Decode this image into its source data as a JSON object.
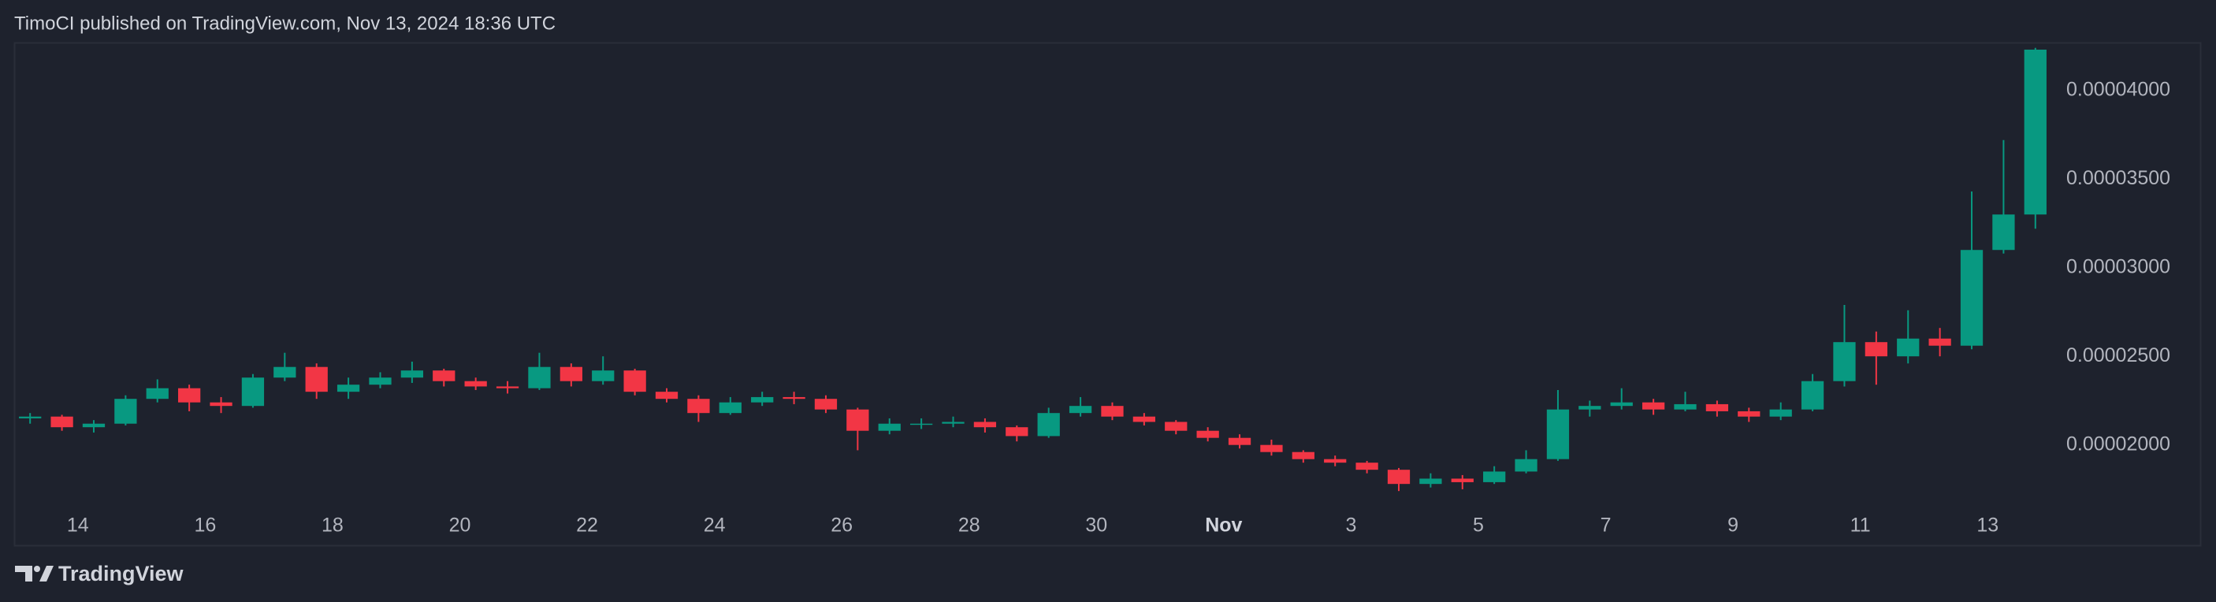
{
  "header": {
    "text": "TimoCI published on TradingView.com, Nov 13, 2024 18:36 UTC"
  },
  "footer": {
    "brand": "TradingView"
  },
  "chart_data": {
    "type": "candlestick",
    "up_color": "#089981",
    "down_color": "#f23645",
    "grid": false,
    "open": [
      2.15e-05,
      2.16e-05,
      2.1e-05,
      2.12e-05,
      2.26e-05,
      2.32e-05,
      2.24e-05,
      2.22e-05,
      2.38e-05,
      2.44e-05,
      2.3e-05,
      2.34e-05,
      2.38e-05,
      2.42e-05,
      2.36e-05,
      2.33e-05,
      2.32e-05,
      2.44e-05,
      2.36e-05,
      2.42e-05,
      2.3e-05,
      2.26e-05,
      2.18e-05,
      2.24e-05,
      2.27e-05,
      2.26e-05,
      2.2e-05,
      2.08e-05,
      2.12e-05,
      2.12e-05,
      2.13e-05,
      2.1e-05,
      2.05e-05,
      2.18e-05,
      2.22e-05,
      2.16e-05,
      2.13e-05,
      2.08e-05,
      2.04e-05,
      2e-05,
      1.96e-05,
      1.92e-05,
      1.9e-05,
      1.86e-05,
      1.78e-05,
      1.81e-05,
      1.79e-05,
      1.85e-05,
      1.92e-05,
      2.2e-05,
      2.22e-05,
      2.24e-05,
      2.2e-05,
      2.23e-05,
      2.19e-05,
      2.16e-05,
      2.2e-05,
      2.36e-05,
      2.58e-05,
      2.5e-05,
      2.6e-05,
      2.56e-05,
      3.1e-05,
      3.3e-05
    ],
    "high": [
      2.18e-05,
      2.17e-05,
      2.14e-05,
      2.28e-05,
      2.37e-05,
      2.34e-05,
      2.27e-05,
      2.4e-05,
      2.52e-05,
      2.46e-05,
      2.38e-05,
      2.41e-05,
      2.47e-05,
      2.43e-05,
      2.38e-05,
      2.36e-05,
      2.52e-05,
      2.46e-05,
      2.5e-05,
      2.43e-05,
      2.32e-05,
      2.28e-05,
      2.27e-05,
      2.3e-05,
      2.3e-05,
      2.28e-05,
      2.21e-05,
      2.15e-05,
      2.15e-05,
      2.16e-05,
      2.15e-05,
      2.11e-05,
      2.21e-05,
      2.27e-05,
      2.24e-05,
      2.18e-05,
      2.14e-05,
      2.1e-05,
      2.06e-05,
      2.03e-05,
      1.97e-05,
      1.94e-05,
      1.91e-05,
      1.87e-05,
      1.84e-05,
      1.83e-05,
      1.88e-05,
      1.97e-05,
      2.31e-05,
      2.25e-05,
      2.32e-05,
      2.26e-05,
      2.3e-05,
      2.25e-05,
      2.21e-05,
      2.24e-05,
      2.4e-05,
      2.79e-05,
      2.64e-05,
      2.76e-05,
      2.66e-05,
      3.43e-05,
      3.72e-05,
      4.24e-05
    ],
    "low": [
      2.12e-05,
      2.08e-05,
      2.07e-05,
      2.11e-05,
      2.24e-05,
      2.19e-05,
      2.18e-05,
      2.21e-05,
      2.36e-05,
      2.26e-05,
      2.26e-05,
      2.32e-05,
      2.35e-05,
      2.33e-05,
      2.31e-05,
      2.29e-05,
      2.31e-05,
      2.33e-05,
      2.34e-05,
      2.28e-05,
      2.24e-05,
      2.13e-05,
      2.17e-05,
      2.22e-05,
      2.23e-05,
      2.18e-05,
      1.97e-05,
      2.06e-05,
      2.09e-05,
      2.1e-05,
      2.07e-05,
      2.02e-05,
      2.04e-05,
      2.16e-05,
      2.14e-05,
      2.11e-05,
      2.06e-05,
      2.02e-05,
      1.98e-05,
      1.94e-05,
      1.9e-05,
      1.88e-05,
      1.84e-05,
      1.74e-05,
      1.76e-05,
      1.75e-05,
      1.78e-05,
      1.84e-05,
      1.91e-05,
      2.16e-05,
      2.2e-05,
      2.17e-05,
      2.19e-05,
      2.16e-05,
      2.13e-05,
      2.14e-05,
      2.19e-05,
      2.33e-05,
      2.34e-05,
      2.46e-05,
      2.5e-05,
      2.54e-05,
      3.08e-05,
      3.22e-05
    ],
    "close": [
      2.16e-05,
      2.1e-05,
      2.12e-05,
      2.26e-05,
      2.32e-05,
      2.24e-05,
      2.22e-05,
      2.38e-05,
      2.44e-05,
      2.3e-05,
      2.34e-05,
      2.38e-05,
      2.42e-05,
      2.36e-05,
      2.33e-05,
      2.32e-05,
      2.44e-05,
      2.36e-05,
      2.42e-05,
      2.3e-05,
      2.26e-05,
      2.18e-05,
      2.24e-05,
      2.27e-05,
      2.26e-05,
      2.2e-05,
      2.08e-05,
      2.12e-05,
      2.12e-05,
      2.13e-05,
      2.1e-05,
      2.05e-05,
      2.18e-05,
      2.22e-05,
      2.16e-05,
      2.13e-05,
      2.08e-05,
      2.04e-05,
      2e-05,
      1.96e-05,
      1.92e-05,
      1.9e-05,
      1.86e-05,
      1.78e-05,
      1.81e-05,
      1.79e-05,
      1.85e-05,
      1.92e-05,
      2.2e-05,
      2.22e-05,
      2.24e-05,
      2.2e-05,
      2.23e-05,
      2.19e-05,
      2.16e-05,
      2.2e-05,
      2.36e-05,
      2.58e-05,
      2.5e-05,
      2.6e-05,
      2.56e-05,
      3.1e-05,
      3.3e-05,
      4.23e-05
    ],
    "xlim": [
      0,
      64
    ],
    "xticks": [
      {
        "value": 2,
        "label": "14"
      },
      {
        "value": 6,
        "label": "16"
      },
      {
        "value": 10,
        "label": "18"
      },
      {
        "value": 14,
        "label": "20"
      },
      {
        "value": 18,
        "label": "22"
      },
      {
        "value": 22,
        "label": "24"
      },
      {
        "value": 26,
        "label": "26"
      },
      {
        "value": 30,
        "label": "28"
      },
      {
        "value": 34,
        "label": "30"
      },
      {
        "value": 38,
        "label": "Nov"
      },
      {
        "value": 42,
        "label": "3"
      },
      {
        "value": 46,
        "label": "5"
      },
      {
        "value": 50,
        "label": "7"
      },
      {
        "value": 54,
        "label": "9"
      },
      {
        "value": 58,
        "label": "11"
      },
      {
        "value": 62,
        "label": "13"
      }
    ],
    "ylim": [
      1.643e-05,
      4.27e-05
    ],
    "yticks": [
      {
        "value": 2e-05,
        "label": "0.00002000"
      },
      {
        "value": 2.5e-05,
        "label": "0.00002500"
      },
      {
        "value": 3e-05,
        "label": "0.00003000"
      },
      {
        "value": 3.5e-05,
        "label": "0.00003500"
      },
      {
        "value": 4e-05,
        "label": "0.00004000"
      }
    ]
  }
}
